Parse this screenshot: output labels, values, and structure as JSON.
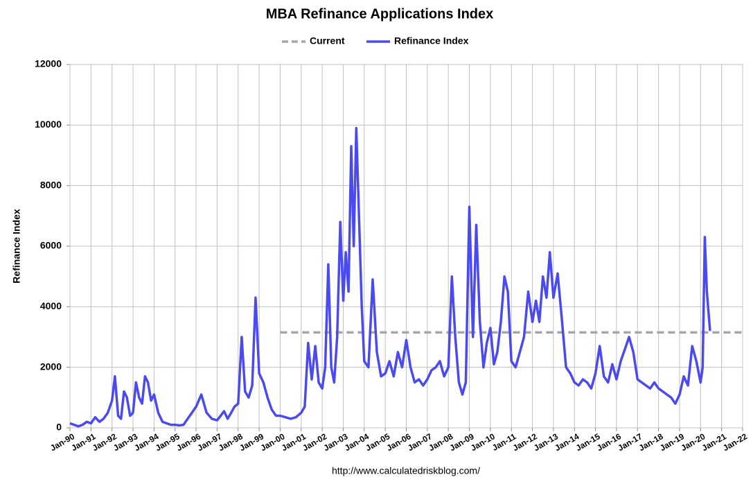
{
  "chart_data": {
    "type": "line",
    "title": "MBA Refinance Applications Index",
    "y_label": "Refinance Index",
    "source": "http://www.calculatedriskblog.com/",
    "xlim": [
      1990,
      2022
    ],
    "ylim": [
      0,
      12000
    ],
    "grid": true,
    "legend": "top",
    "yticks": [
      0,
      2000,
      4000,
      6000,
      8000,
      10000,
      12000
    ],
    "xticks": [
      {
        "value": 1990,
        "label": "Jan-90"
      },
      {
        "value": 1991,
        "label": "Jan-91"
      },
      {
        "value": 1992,
        "label": "Jan-92"
      },
      {
        "value": 1993,
        "label": "Jan-93"
      },
      {
        "value": 1994,
        "label": "Jan-94"
      },
      {
        "value": 1995,
        "label": "Jan-95"
      },
      {
        "value": 1996,
        "label": "Jan-96"
      },
      {
        "value": 1997,
        "label": "Jan-97"
      },
      {
        "value": 1998,
        "label": "Jan-98"
      },
      {
        "value": 1999,
        "label": "Jan-99"
      },
      {
        "value": 2000,
        "label": "Jan-00"
      },
      {
        "value": 2001,
        "label": "Jan-01"
      },
      {
        "value": 2002,
        "label": "Jan-02"
      },
      {
        "value": 2003,
        "label": "Jan-03"
      },
      {
        "value": 2004,
        "label": "Jan-04"
      },
      {
        "value": 2005,
        "label": "Jan-05"
      },
      {
        "value": 2006,
        "label": "Jan-06"
      },
      {
        "value": 2007,
        "label": "Jan-07"
      },
      {
        "value": 2008,
        "label": "Jan-08"
      },
      {
        "value": 2009,
        "label": "Jan-09"
      },
      {
        "value": 2010,
        "label": "Jan-10"
      },
      {
        "value": 2011,
        "label": "Jan-11"
      },
      {
        "value": 2012,
        "label": "Jan-12"
      },
      {
        "value": 2013,
        "label": "Jan-13"
      },
      {
        "value": 2014,
        "label": "Jan-14"
      },
      {
        "value": 2015,
        "label": "Jan-15"
      },
      {
        "value": 2016,
        "label": "Jan-16"
      },
      {
        "value": 2017,
        "label": "Jan-17"
      },
      {
        "value": 2018,
        "label": "Jan-18"
      },
      {
        "value": 2019,
        "label": "Jan-19"
      },
      {
        "value": 2020,
        "label": "Jan-20"
      },
      {
        "value": 2021,
        "label": "Jan-21"
      },
      {
        "value": 2022,
        "label": "Jan-22"
      }
    ],
    "series": [
      {
        "name": "Current",
        "color": "#a6a6a6",
        "dashed": true,
        "x": [
          2000,
          2022
        ],
        "values": [
          3150,
          3150
        ]
      },
      {
        "name": "Refinance Index",
        "color": "#4a4aef",
        "dashed": false,
        "x": [
          1990,
          1990.2,
          1990.4,
          1990.6,
          1990.8,
          1991,
          1991.2,
          1991.4,
          1991.6,
          1991.8,
          1992,
          1992.14,
          1992.29,
          1992.43,
          1992.57,
          1992.71,
          1992.86,
          1993,
          1993.14,
          1993.29,
          1993.43,
          1993.57,
          1993.71,
          1993.86,
          1994,
          1994.2,
          1994.4,
          1994.6,
          1994.8,
          1995,
          1995.2,
          1995.4,
          1995.6,
          1995.8,
          1996,
          1996.25,
          1996.5,
          1996.75,
          1997,
          1997.17,
          1997.33,
          1997.5,
          1997.67,
          1997.83,
          1998,
          1998.17,
          1998.33,
          1998.5,
          1998.67,
          1998.83,
          1999,
          1999.2,
          1999.4,
          1999.6,
          1999.8,
          2000,
          2000.25,
          2000.5,
          2000.75,
          2001,
          2001.17,
          2001.33,
          2001.5,
          2001.67,
          2001.83,
          2002,
          2002.14,
          2002.29,
          2002.43,
          2002.57,
          2002.71,
          2002.86,
          2003,
          2003.12,
          2003.25,
          2003.38,
          2003.5,
          2003.62,
          2003.75,
          2003.88,
          2004,
          2004.2,
          2004.4,
          2004.6,
          2004.8,
          2005,
          2005.2,
          2005.4,
          2005.6,
          2005.8,
          2006,
          2006.2,
          2006.4,
          2006.6,
          2006.8,
          2007,
          2007.2,
          2007.4,
          2007.6,
          2007.8,
          2008,
          2008.17,
          2008.33,
          2008.5,
          2008.67,
          2008.83,
          2009,
          2009.17,
          2009.33,
          2009.5,
          2009.67,
          2009.83,
          2010,
          2010.17,
          2010.33,
          2010.5,
          2010.67,
          2010.83,
          2011,
          2011.2,
          2011.4,
          2011.6,
          2011.8,
          2012,
          2012.17,
          2012.33,
          2012.5,
          2012.67,
          2012.83,
          2013,
          2013.2,
          2013.4,
          2013.6,
          2013.8,
          2014,
          2014.2,
          2014.4,
          2014.6,
          2014.8,
          2015,
          2015.2,
          2015.4,
          2015.6,
          2015.8,
          2016,
          2016.2,
          2016.4,
          2016.6,
          2016.8,
          2017,
          2017.2,
          2017.4,
          2017.6,
          2017.8,
          2018,
          2018.2,
          2018.4,
          2018.6,
          2018.8,
          2019,
          2019.2,
          2019.4,
          2019.6,
          2019.8,
          2020,
          2020.1,
          2020.2,
          2020.3,
          2020.38,
          2020.45
        ],
        "values": [
          150,
          100,
          50,
          100,
          200,
          150,
          350,
          200,
          300,
          500,
          900,
          1700,
          400,
          300,
          1200,
          1000,
          400,
          500,
          1500,
          1000,
          800,
          1700,
          1500,
          900,
          1100,
          500,
          200,
          150,
          100,
          100,
          80,
          100,
          300,
          500,
          700,
          1100,
          500,
          300,
          250,
          400,
          550,
          300,
          500,
          700,
          800,
          3000,
          1200,
          1000,
          1400,
          4300,
          1800,
          1500,
          1000,
          600,
          400,
          400,
          350,
          300,
          350,
          500,
          700,
          2800,
          1600,
          2700,
          1500,
          1300,
          2000,
          5400,
          2000,
          1500,
          3000,
          6800,
          4200,
          5800,
          4500,
          9300,
          6000,
          9900,
          7000,
          4000,
          2200,
          2000,
          4900,
          2500,
          1700,
          1800,
          2200,
          1700,
          2500,
          2000,
          2900,
          2000,
          1500,
          1600,
          1400,
          1600,
          1900,
          2000,
          2200,
          1700,
          2000,
          5000,
          3000,
          1500,
          1100,
          1500,
          7300,
          3000,
          6700,
          3500,
          2000,
          2800,
          3300,
          2100,
          2500,
          3500,
          5000,
          4500,
          2200,
          2000,
          2500,
          3000,
          4500,
          3500,
          4200,
          3500,
          5000,
          4300,
          5800,
          4300,
          5100,
          3600,
          2000,
          1800,
          1500,
          1400,
          1600,
          1500,
          1300,
          1800,
          2700,
          1700,
          1500,
          2100,
          1600,
          2200,
          2600,
          3000,
          2500,
          1600,
          1500,
          1400,
          1300,
          1500,
          1300,
          1200,
          1100,
          1000,
          800,
          1100,
          1700,
          1400,
          2700,
          2200,
          1500,
          2000,
          6300,
          4500,
          3800,
          3200
        ]
      }
    ]
  }
}
